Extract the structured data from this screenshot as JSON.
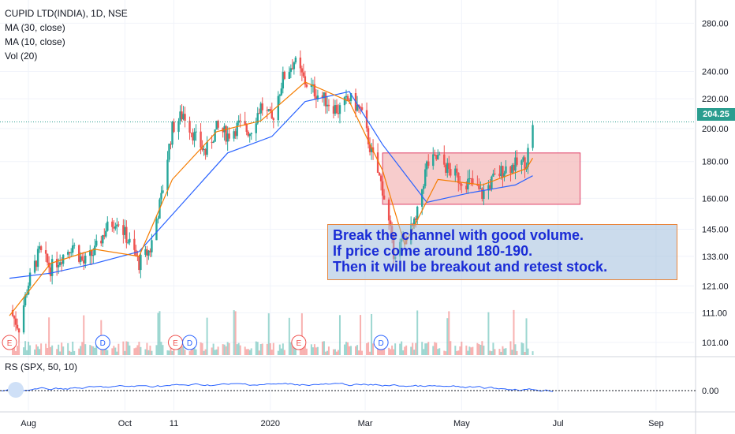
{
  "legend": {
    "symbol": "CUPID LTD(INDIA), 1D, NSE",
    "ma30": "MA (30, close)",
    "ma10": "MA (10, close)",
    "vol": "Vol (20)"
  },
  "annotation": {
    "line1": "Break the channel with good volume.",
    "line2": "If price come around 180-190.",
    "line3": "Then it will be breakout and retest stock."
  },
  "last_price": "204.25",
  "rs_label": "RS (SPX, 50, 10)",
  "colors": {
    "up": "#26a69a",
    "down": "#ef5350",
    "ma30": "#2962ff",
    "ma10": "#f57c00",
    "rs": "#2962ff",
    "channel_fill": "#f4b6b6",
    "channel_border": "#e0436a",
    "price_line": "#2a9d8f"
  },
  "events": [
    {
      "type": "E",
      "date": "Jul"
    },
    {
      "type": "D",
      "date": "Sep"
    },
    {
      "type": "E",
      "date": "Nov"
    },
    {
      "type": "D",
      "date": "Nov"
    },
    {
      "type": "E",
      "date": "Feb"
    },
    {
      "type": "D",
      "date": "Mar"
    }
  ],
  "chart_data": {
    "type": "candlestick",
    "title": "CUPID LTD(INDIA), 1D, NSE",
    "price_ticks": [
      "280.00",
      "240.00",
      "220.00",
      "200.00",
      "180.00",
      "160.00",
      "145.00",
      "133.00",
      "121.00",
      "111.00",
      "101.00"
    ],
    "x_ticks": [
      "Aug",
      "Oct",
      "11",
      "2020",
      "Mar",
      "May",
      "Jul",
      "Sep"
    ],
    "rs_ticks": [
      "0.00"
    ],
    "scale": "log",
    "ylim": [
      97,
      300
    ],
    "last_close": 204.25,
    "price_path": [
      [
        "2019-07-20",
        112
      ],
      [
        "2019-07-26",
        106
      ],
      [
        "2019-08-01",
        122
      ],
      [
        "2019-08-08",
        135
      ],
      [
        "2019-08-15",
        128
      ],
      [
        "2019-08-22",
        133
      ],
      [
        "2019-08-29",
        138
      ],
      [
        "2019-09-05",
        130
      ],
      [
        "2019-09-12",
        135
      ],
      [
        "2019-09-19",
        145
      ],
      [
        "2019-09-26",
        150
      ],
      [
        "2019-10-03",
        140
      ],
      [
        "2019-10-10",
        130
      ],
      [
        "2019-10-17",
        136
      ],
      [
        "2019-10-24",
        160
      ],
      [
        "2019-10-31",
        200
      ],
      [
        "2019-11-07",
        210
      ],
      [
        "2019-11-14",
        195
      ],
      [
        "2019-11-21",
        185
      ],
      [
        "2019-11-28",
        200
      ],
      [
        "2019-12-05",
        196
      ],
      [
        "2019-12-12",
        202
      ],
      [
        "2019-12-19",
        198
      ],
      [
        "2019-12-26",
        215
      ],
      [
        "2020-01-02",
        205
      ],
      [
        "2020-01-09",
        235
      ],
      [
        "2020-01-16",
        248
      ],
      [
        "2020-01-23",
        232
      ],
      [
        "2020-01-30",
        224
      ],
      [
        "2020-02-06",
        218
      ],
      [
        "2020-02-13",
        212
      ],
      [
        "2020-02-20",
        220
      ],
      [
        "2020-02-27",
        212
      ],
      [
        "2020-03-05",
        185
      ],
      [
        "2020-03-12",
        165
      ],
      [
        "2020-03-19",
        135
      ],
      [
        "2020-03-26",
        140
      ],
      [
        "2020-04-02",
        148
      ],
      [
        "2020-04-09",
        178
      ],
      [
        "2020-04-16",
        182
      ],
      [
        "2020-04-23",
        175
      ],
      [
        "2020-04-30",
        170
      ],
      [
        "2020-05-07",
        168
      ],
      [
        "2020-05-14",
        162
      ],
      [
        "2020-05-21",
        170
      ],
      [
        "2020-05-28",
        176
      ],
      [
        "2020-06-04",
        178
      ],
      [
        "2020-06-11",
        180
      ],
      [
        "2020-06-15",
        204.25
      ]
    ],
    "ma30_path": [
      [
        "2019-07-20",
        124
      ],
      [
        "2019-08-15",
        126
      ],
      [
        "2019-09-12",
        130
      ],
      [
        "2019-10-10",
        135
      ],
      [
        "2019-11-07",
        158
      ],
      [
        "2019-12-05",
        185
      ],
      [
        "2020-01-02",
        195
      ],
      [
        "2020-01-23",
        218
      ],
      [
        "2020-02-20",
        225
      ],
      [
        "2020-03-12",
        190
      ],
      [
        "2020-04-09",
        158
      ],
      [
        "2020-05-07",
        163
      ],
      [
        "2020-06-04",
        167
      ],
      [
        "2020-06-15",
        172
      ]
    ],
    "ma10_path": [
      [
        "2019-07-20",
        110
      ],
      [
        "2019-08-15",
        130
      ],
      [
        "2019-09-12",
        136
      ],
      [
        "2019-10-10",
        133
      ],
      [
        "2019-10-31",
        170
      ],
      [
        "2019-11-28",
        198
      ],
      [
        "2019-12-26",
        205
      ],
      [
        "2020-01-23",
        232
      ],
      [
        "2020-02-20",
        218
      ],
      [
        "2020-03-12",
        175
      ],
      [
        "2020-03-26",
        138
      ],
      [
        "2020-04-16",
        170
      ],
      [
        "2020-05-14",
        167
      ],
      [
        "2020-06-11",
        176
      ],
      [
        "2020-06-15",
        182
      ]
    ],
    "channel": {
      "from": "2020-03-12",
      "to": "2020-07-15",
      "upper": 185,
      "lower": 157
    },
    "rs_value": 0.0
  }
}
